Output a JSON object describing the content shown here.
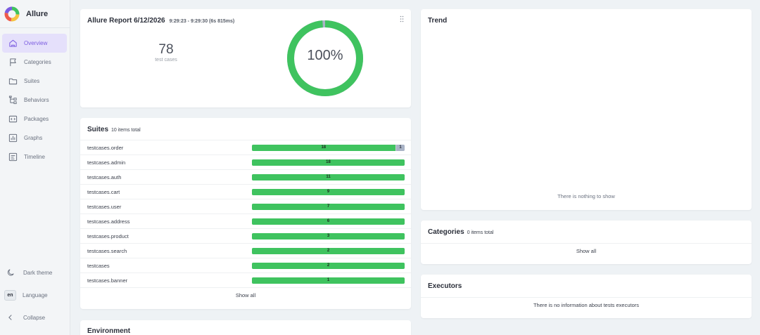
{
  "app": {
    "name": "Allure"
  },
  "colors": {
    "passed": "#3fc35f",
    "unknown": "#a9b3c6",
    "accent": "#7b5ce0",
    "active_bg": "#e5e0fb"
  },
  "sidebar": {
    "items": [
      {
        "label": "Overview",
        "icon": "home-icon",
        "active": true
      },
      {
        "label": "Categories",
        "icon": "flag-icon",
        "active": false
      },
      {
        "label": "Suites",
        "icon": "folder-icon",
        "active": false
      },
      {
        "label": "Behaviors",
        "icon": "tree-icon",
        "active": false
      },
      {
        "label": "Packages",
        "icon": "code-icon",
        "active": false
      },
      {
        "label": "Graphs",
        "icon": "chart-icon",
        "active": false
      },
      {
        "label": "Timeline",
        "icon": "timeline-icon",
        "active": false
      }
    ],
    "dark_theme_label": "Dark theme",
    "language_code": "en",
    "language_label": "Language",
    "collapse_label": "Collapse"
  },
  "overview": {
    "title": "Allure Report 6/12/2026",
    "time_range": "9:29:23 - 9:29:30 (6s 815ms)",
    "test_cases_count": "78",
    "test_cases_label": "test cases",
    "pass_rate_text": "100%",
    "passed_fraction": 0.987
  },
  "suites": {
    "title": "Suites",
    "subtitle": "10 items total",
    "rows": [
      {
        "name": "testcases.order",
        "passed": "18",
        "other": "1",
        "passed_count": 18,
        "other_count": 1
      },
      {
        "name": "testcases.admin",
        "passed": "18",
        "other": "",
        "passed_count": 18,
        "other_count": 0
      },
      {
        "name": "testcases.auth",
        "passed": "11",
        "other": "",
        "passed_count": 11,
        "other_count": 0
      },
      {
        "name": "testcases.cart",
        "passed": "9",
        "other": "",
        "passed_count": 9,
        "other_count": 0
      },
      {
        "name": "testcases.user",
        "passed": "7",
        "other": "",
        "passed_count": 7,
        "other_count": 0
      },
      {
        "name": "testcases.address",
        "passed": "6",
        "other": "",
        "passed_count": 6,
        "other_count": 0
      },
      {
        "name": "testcases.product",
        "passed": "3",
        "other": "",
        "passed_count": 3,
        "other_count": 0
      },
      {
        "name": "testcases.search",
        "passed": "2",
        "other": "",
        "passed_count": 2,
        "other_count": 0
      },
      {
        "name": "testcases",
        "passed": "2",
        "other": "",
        "passed_count": 2,
        "other_count": 0
      },
      {
        "name": "testcases.banner",
        "passed": "1",
        "other": "",
        "passed_count": 1,
        "other_count": 0
      }
    ],
    "show_all": "Show all"
  },
  "environment": {
    "title": "Environment"
  },
  "trend": {
    "title": "Trend",
    "empty_text": "There is nothing to show"
  },
  "categories": {
    "title": "Categories",
    "subtitle": "0 items total",
    "show_all": "Show all"
  },
  "executors": {
    "title": "Executors",
    "empty_text": "There is no information about tests executors"
  }
}
